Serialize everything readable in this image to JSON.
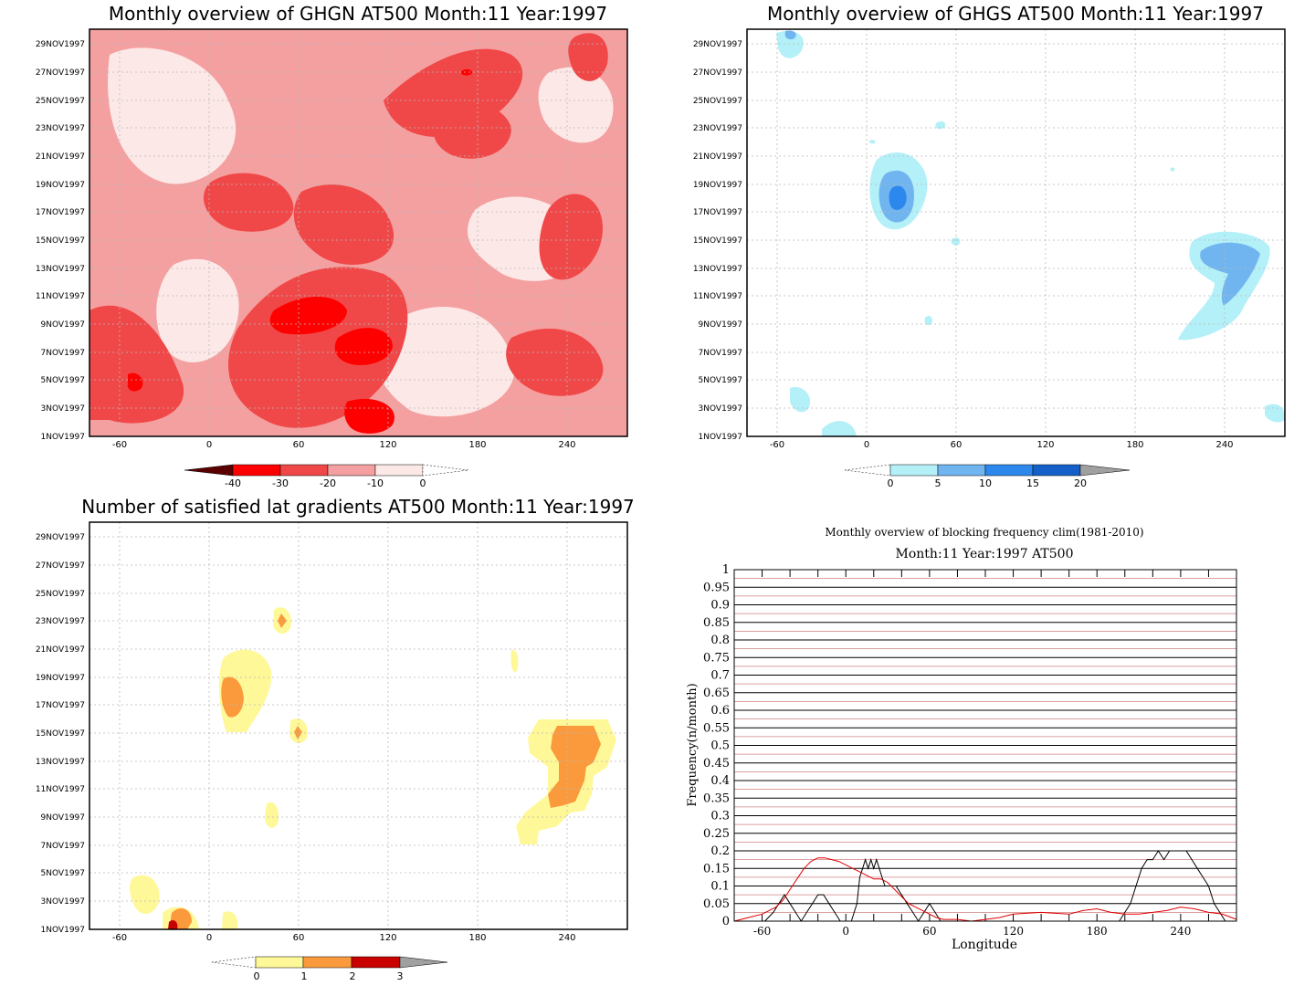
{
  "chart_data": [
    {
      "type": "heatmap",
      "title": "Monthly overview of GHGN AT500 Month:11 Year:1997",
      "x_ticks": [
        "-60",
        "0",
        "60",
        "120",
        "180",
        "240"
      ],
      "y_ticks": [
        "1NOV1997",
        "3NOV1997",
        "5NOV1997",
        "7NOV1997",
        "9NOV1997",
        "11NOV1997",
        "13NOV1997",
        "15NOV1997",
        "17NOV1997",
        "19NOV1997",
        "21NOV1997",
        "23NOV1997",
        "25NOV1997",
        "27NOV1997",
        "29NOV1997"
      ],
      "xlim": [
        -80,
        280
      ],
      "ylim": [
        1,
        30
      ],
      "colorbar": {
        "labels": [
          "-40",
          "-30",
          "-20",
          "-10",
          "0"
        ],
        "colors": [
          "#5a0000",
          "#ff0000",
          "#f04848",
          "#f4a0a0",
          "#fde8e8"
        ]
      },
      "grid": true
    },
    {
      "type": "heatmap",
      "title": "Monthly overview of GHGS AT500 Month:11 Year:1997",
      "x_ticks": [
        "-60",
        "0",
        "60",
        "120",
        "180",
        "240"
      ],
      "y_ticks": [
        "1NOV1997",
        "3NOV1997",
        "5NOV1997",
        "7NOV1997",
        "9NOV1997",
        "11NOV1997",
        "13NOV1997",
        "15NOV1997",
        "17NOV1997",
        "19NOV1997",
        "21NOV1997",
        "23NOV1997",
        "25NOV1997",
        "27NOV1997",
        "29NOV1997"
      ],
      "xlim": [
        -80,
        280
      ],
      "ylim": [
        1,
        30
      ],
      "colorbar": {
        "labels": [
          "0",
          "5",
          "10",
          "15",
          "20"
        ],
        "colors": [
          "#b4f0f8",
          "#70b4f0",
          "#2c88ec",
          "#1460c8",
          "#a0a0a0"
        ]
      },
      "grid": true
    },
    {
      "type": "heatmap",
      "title": "Number of satisfied lat gradients AT500 Month:11 Year:1997",
      "x_ticks": [
        "-60",
        "0",
        "60",
        "120",
        "180",
        "240"
      ],
      "y_ticks": [
        "1NOV1997",
        "3NOV1997",
        "5NOV1997",
        "7NOV1997",
        "9NOV1997",
        "11NOV1997",
        "13NOV1997",
        "15NOV1997",
        "17NOV1997",
        "19NOV1997",
        "21NOV1997",
        "23NOV1997",
        "25NOV1997",
        "27NOV1997",
        "29NOV1997"
      ],
      "xlim": [
        -80,
        280
      ],
      "ylim": [
        1,
        30
      ],
      "colorbar": {
        "labels": [
          "0",
          "1",
          "2",
          "3"
        ],
        "colors": [
          "#fff898",
          "#fa9a3c",
          "#c80000",
          "#a0a0a0"
        ]
      },
      "grid": true
    },
    {
      "type": "line",
      "title": "Monthly overview of blocking frequency clim(1981-2010)",
      "subtitle": "Month:11 Year:1997  AT500",
      "xlabel": "Longitude",
      "ylabel": "Frequency(n/month)",
      "xlim": [
        -80,
        280
      ],
      "ylim": [
        0,
        1
      ],
      "x_ticks": [
        "-60",
        "0",
        "60",
        "120",
        "180",
        "240"
      ],
      "y_ticks": [
        "0",
        "0.05",
        "0.1",
        "0.15",
        "0.2",
        "0.25",
        "0.3",
        "0.35",
        "0.4",
        "0.45",
        "0.5",
        "0.55",
        "0.6",
        "0.65",
        "0.7",
        "0.75",
        "0.8",
        "0.85",
        "0.9",
        "0.95",
        "1"
      ],
      "series": [
        {
          "color": "#000000",
          "x": [
            -80,
            -65,
            -58,
            -52,
            -48,
            -44,
            -40,
            -36,
            -32,
            -28,
            -24,
            -20,
            -16,
            -12,
            -8,
            -4,
            0,
            4,
            8,
            10,
            12,
            14,
            16,
            18,
            20,
            22,
            24,
            26,
            28,
            32,
            36,
            40,
            44,
            48,
            52,
            56,
            60,
            64,
            68,
            72,
            80,
            120,
            180,
            196,
            200,
            204,
            208,
            212,
            216,
            220,
            224,
            228,
            232,
            236,
            240,
            244,
            248,
            252,
            256,
            260,
            264,
            268,
            272,
            280
          ],
          "y": [
            0,
            0,
            0,
            0.025,
            0.05,
            0.075,
            0.05,
            0.025,
            0,
            0.025,
            0.05,
            0.075,
            0.075,
            0.05,
            0.025,
            0,
            0,
            0,
            0.05,
            0.125,
            0.15,
            0.175,
            0.15,
            0.175,
            0.15,
            0.175,
            0.15,
            0.125,
            0.1,
            0.1,
            0.1,
            0.075,
            0.05,
            0.025,
            0,
            0.025,
            0.05,
            0.025,
            0,
            0,
            0,
            0,
            0,
            0,
            0.025,
            0.05,
            0.1,
            0.15,
            0.175,
            0.175,
            0.2,
            0.175,
            0.2,
            0.2,
            0.2,
            0.2,
            0.175,
            0.15,
            0.125,
            0.1,
            0.05,
            0.025,
            0,
            0
          ]
        },
        {
          "color": "#e00000",
          "x": [
            -80,
            -70,
            -60,
            -50,
            -45,
            -40,
            -35,
            -30,
            -25,
            -20,
            -15,
            -10,
            -5,
            0,
            5,
            10,
            15,
            20,
            25,
            30,
            35,
            40,
            45,
            50,
            55,
            60,
            65,
            70,
            80,
            90,
            100,
            110,
            120,
            140,
            160,
            170,
            180,
            190,
            200,
            210,
            220,
            230,
            240,
            250,
            260,
            270,
            280
          ],
          "y": [
            0,
            0.01,
            0.02,
            0.04,
            0.06,
            0.09,
            0.12,
            0.15,
            0.17,
            0.18,
            0.18,
            0.175,
            0.17,
            0.16,
            0.15,
            0.14,
            0.13,
            0.12,
            0.12,
            0.11,
            0.09,
            0.07,
            0.05,
            0.04,
            0.03,
            0.02,
            0.01,
            0.005,
            0.005,
            0,
            0.005,
            0.01,
            0.02,
            0.025,
            0.02,
            0.03,
            0.035,
            0.025,
            0.02,
            0.02,
            0.025,
            0.03,
            0.04,
            0.035,
            0.025,
            0.02,
            0.005
          ]
        }
      ],
      "grid": true
    }
  ]
}
